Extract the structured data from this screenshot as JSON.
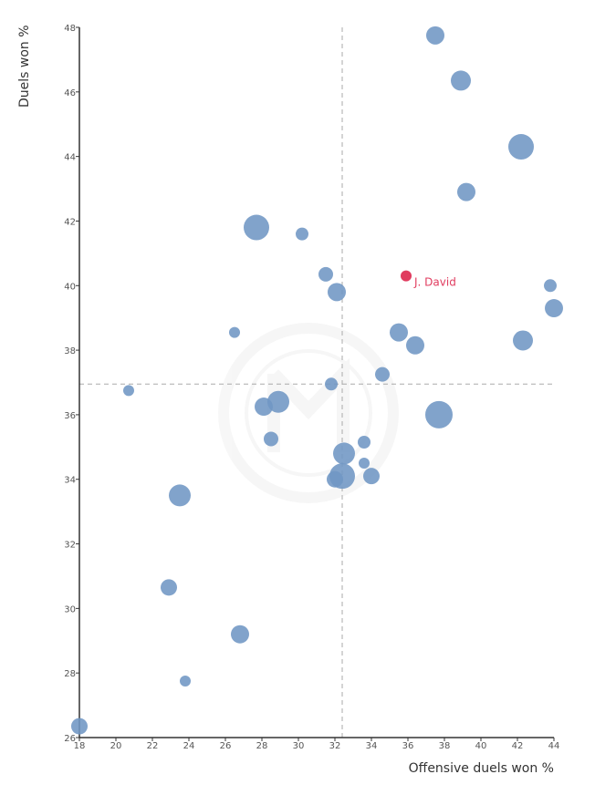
{
  "chart_data": {
    "type": "scatter",
    "title": "",
    "xlabel": "Offensive duels won %",
    "ylabel": "Duels won %",
    "xlim": [
      18,
      44
    ],
    "ylim": [
      26,
      48
    ],
    "x_ticks": [
      "18",
      "20",
      "22",
      "24",
      "26",
      "28",
      "30",
      "32",
      "34",
      "36",
      "38",
      "40",
      "42",
      "44"
    ],
    "y_ticks": [
      "26",
      "28",
      "30",
      "32",
      "34",
      "36",
      "38",
      "40",
      "42",
      "44",
      "46",
      "48"
    ],
    "reference_lines": {
      "x": 32.4,
      "y": 36.95
    },
    "grid": false,
    "size_encoding": "bubble size varies",
    "colors": {
      "points": "#6f96c4",
      "highlight": "#e03c5f",
      "reference": "#aaaaaa",
      "axis": "#333333"
    },
    "highlight": {
      "label": "J. David",
      "x": 35.9,
      "y": 40.3
    },
    "points": [
      {
        "x": 37.5,
        "y": 47.75,
        "size": 10
      },
      {
        "x": 38.9,
        "y": 46.35,
        "size": 11
      },
      {
        "x": 42.2,
        "y": 44.3,
        "size": 14
      },
      {
        "x": 39.2,
        "y": 42.9,
        "size": 10
      },
      {
        "x": 27.7,
        "y": 41.8,
        "size": 14
      },
      {
        "x": 30.2,
        "y": 41.6,
        "size": 7
      },
      {
        "x": 31.5,
        "y": 40.35,
        "size": 8
      },
      {
        "x": 32.1,
        "y": 39.8,
        "size": 10
      },
      {
        "x": 43.8,
        "y": 40.0,
        "size": 7
      },
      {
        "x": 44.0,
        "y": 39.3,
        "size": 10
      },
      {
        "x": 26.5,
        "y": 38.55,
        "size": 6
      },
      {
        "x": 35.5,
        "y": 38.55,
        "size": 10
      },
      {
        "x": 36.4,
        "y": 38.15,
        "size": 10
      },
      {
        "x": 42.3,
        "y": 38.3,
        "size": 11
      },
      {
        "x": 34.6,
        "y": 37.25,
        "size": 8
      },
      {
        "x": 31.8,
        "y": 36.95,
        "size": 7
      },
      {
        "x": 20.7,
        "y": 36.75,
        "size": 6
      },
      {
        "x": 28.1,
        "y": 36.25,
        "size": 10
      },
      {
        "x": 28.9,
        "y": 36.4,
        "size": 12
      },
      {
        "x": 37.7,
        "y": 36.0,
        "size": 15
      },
      {
        "x": 28.5,
        "y": 35.25,
        "size": 8
      },
      {
        "x": 33.6,
        "y": 35.15,
        "size": 7
      },
      {
        "x": 32.5,
        "y": 34.8,
        "size": 12
      },
      {
        "x": 33.6,
        "y": 34.5,
        "size": 6
      },
      {
        "x": 32.4,
        "y": 34.1,
        "size": 14
      },
      {
        "x": 32.0,
        "y": 34.0,
        "size": 9
      },
      {
        "x": 34.0,
        "y": 34.1,
        "size": 9
      },
      {
        "x": 23.5,
        "y": 33.5,
        "size": 12
      },
      {
        "x": 22.9,
        "y": 30.65,
        "size": 9
      },
      {
        "x": 26.8,
        "y": 29.2,
        "size": 10
      },
      {
        "x": 23.8,
        "y": 27.75,
        "size": 6
      },
      {
        "x": 18.0,
        "y": 26.35,
        "size": 9
      }
    ]
  }
}
